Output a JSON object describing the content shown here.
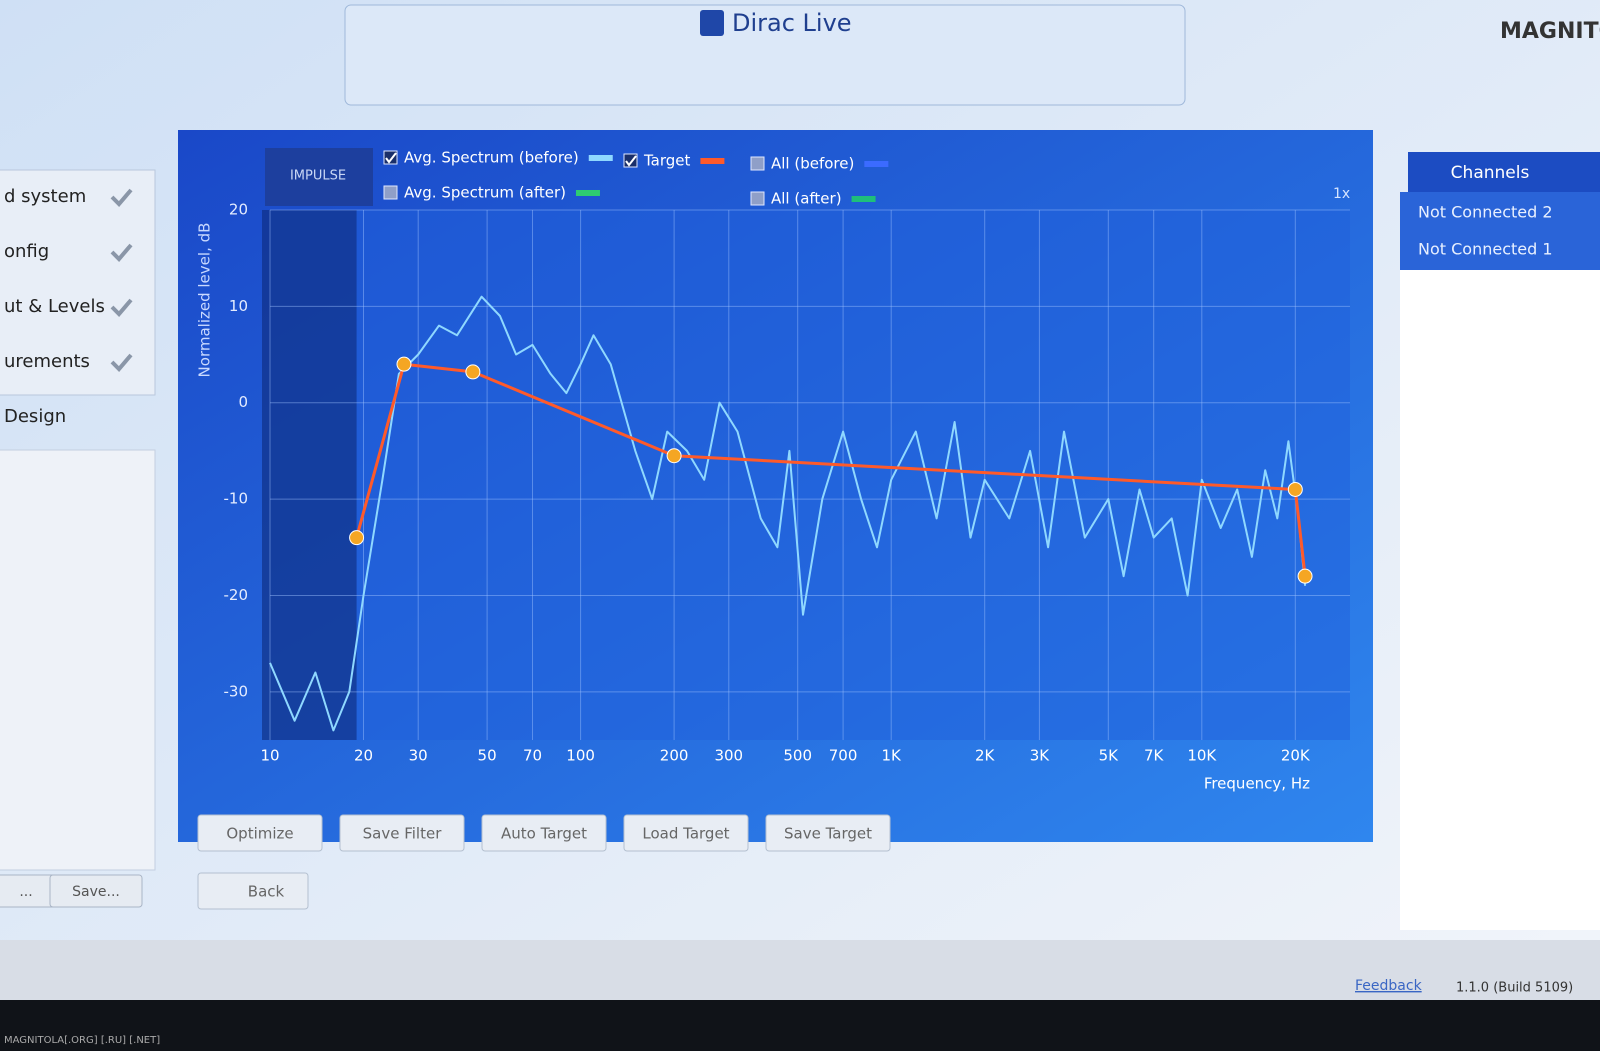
{
  "header": {
    "logo": "Dirac Live",
    "watermark": "MAGNITOLA"
  },
  "sidebar": {
    "steps": [
      "d system",
      "onfig",
      "ut & Levels",
      "urements",
      "Design"
    ],
    "buttons": [
      "...",
      "Save..."
    ]
  },
  "impulse_tab": "IMPULSE",
  "zoom": "1x",
  "channels": {
    "title": "Channels",
    "items": [
      "Not Connected 2",
      "Not Connected 1"
    ]
  },
  "buttons": [
    "Optimize",
    "Save Filter",
    "Auto Target",
    "Load Target",
    "Save Target",
    "Back"
  ],
  "footer": {
    "feedback": "Feedback",
    "version": "1.1.0 (Build 5109)",
    "watermark": "MAGNITOLA[.ORG] [.RU] [.NET]"
  },
  "chart_data": {
    "type": "line",
    "ylabel": "Normalized level, dB",
    "xlabel": "Frequency, Hz",
    "log_x": true,
    "grid": true,
    "xlim": [
      10,
      30000
    ],
    "ylim": [
      -35,
      20
    ],
    "xticks": [
      10,
      20,
      30,
      50,
      70,
      100,
      200,
      300,
      500,
      700,
      {
        "value": 1000,
        "label": "1K"
      },
      {
        "value": 2000,
        "label": "2K"
      },
      {
        "value": 3000,
        "label": "3K"
      },
      {
        "value": 5000,
        "label": "5K"
      },
      {
        "value": 7000,
        "label": "7K"
      },
      {
        "value": 10000,
        "label": "10K"
      },
      {
        "value": 20000,
        "label": "20K"
      }
    ],
    "yticks": [
      -30,
      -20,
      -10,
      0,
      10,
      20
    ],
    "series": [
      {
        "name": "Avg. Spectrum (before)",
        "color": "#8fd8ff",
        "checked": true,
        "x": [
          10,
          12,
          14,
          16,
          18,
          20,
          23,
          26,
          30,
          35,
          40,
          48,
          55,
          62,
          70,
          80,
          90,
          100,
          110,
          125,
          150,
          170,
          190,
          220,
          250,
          280,
          320,
          380,
          430,
          470,
          520,
          600,
          700,
          800,
          900,
          1000,
          1200,
          1400,
          1600,
          1800,
          2000,
          2400,
          2800,
          3200,
          3600,
          4200,
          5000,
          5600,
          6300,
          7000,
          8000,
          9000,
          10000,
          11500,
          13000,
          14500,
          16000,
          17500,
          19000,
          20500,
          21500
        ],
        "values": [
          -27,
          -33,
          -28,
          -34,
          -30,
          -20,
          -8,
          3,
          5,
          8,
          7,
          11,
          9,
          5,
          6,
          3,
          1,
          4,
          7,
          4,
          -5,
          -10,
          -3,
          -5,
          -8,
          0,
          -3,
          -12,
          -15,
          -5,
          -22,
          -10,
          -3,
          -10,
          -15,
          -8,
          -3,
          -12,
          -2,
          -14,
          -8,
          -12,
          -5,
          -15,
          -3,
          -14,
          -10,
          -18,
          -9,
          -14,
          -12,
          -20,
          -8,
          -13,
          -9,
          -16,
          -7,
          -12,
          -4,
          -12,
          -19
        ]
      },
      {
        "name": "Avg. Spectrum (after)",
        "color": "#2ecc71",
        "checked": false
      },
      {
        "name": "Target",
        "color": "#ff5a2a",
        "checked": true,
        "x": [
          19,
          27,
          45,
          200,
          20000,
          21500
        ],
        "values": [
          -14,
          4,
          3.2,
          -5.5,
          -9,
          -18
        ]
      },
      {
        "name": "All (before)",
        "color": "#3b6bff",
        "checked": false
      },
      {
        "name": "All (after)",
        "color": "#1fbf7a",
        "checked": false
      }
    ]
  }
}
